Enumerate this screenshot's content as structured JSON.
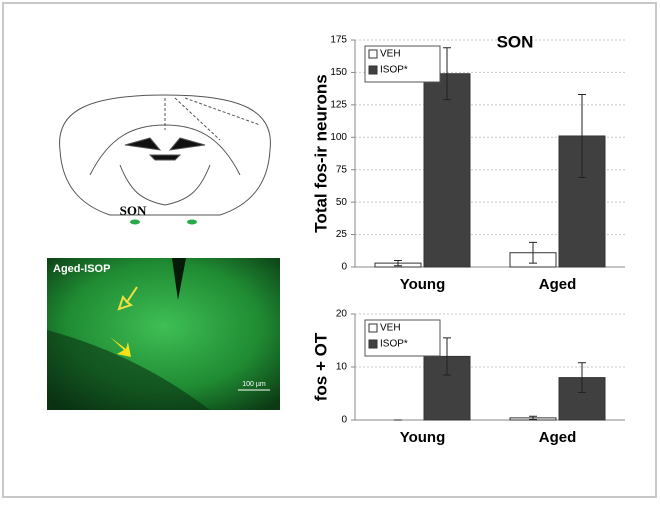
{
  "brain_label": "SON",
  "image_label": "Aged-ISOP",
  "scale_label": "100 µm",
  "chart_data": [
    {
      "type": "bar",
      "title": "SON",
      "y_label": "Total fos-ir neurons",
      "categories": [
        "Young",
        "Aged"
      ],
      "series": [
        {
          "name": "VEH",
          "color": "#ffffff",
          "values": [
            3,
            11
          ],
          "errors": [
            2,
            8
          ]
        },
        {
          "name": "ISOP*",
          "color": "#404040",
          "values": [
            149,
            101
          ],
          "errors": [
            20,
            32
          ]
        }
      ],
      "ylim": [
        0,
        175
      ],
      "yticks": [
        0,
        25,
        50,
        75,
        100,
        125,
        150,
        175
      ],
      "grid": true,
      "legend": "top-left"
    },
    {
      "type": "bar",
      "y_label": "fos + OT",
      "categories": [
        "Young",
        "Aged"
      ],
      "series": [
        {
          "name": "VEH",
          "color": "#ffffff",
          "values": [
            0,
            0.4
          ],
          "errors": [
            0,
            0.3
          ]
        },
        {
          "name": "ISOP*",
          "color": "#404040",
          "values": [
            12,
            8
          ],
          "errors": [
            3.5,
            2.8
          ]
        }
      ],
      "ylim": [
        0,
        20
      ],
      "yticks": [
        0,
        10,
        20
      ],
      "grid": true,
      "legend": "top-left"
    }
  ]
}
